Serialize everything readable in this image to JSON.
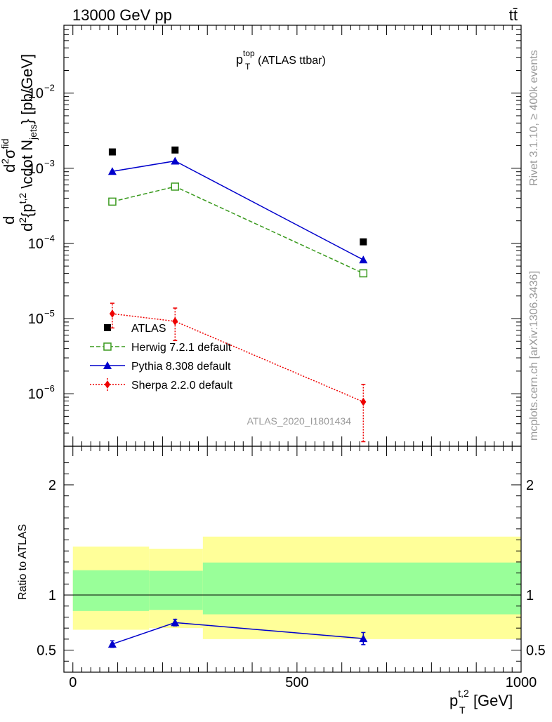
{
  "header": {
    "left": "13000 GeV pp",
    "right": "tt̄"
  },
  "side": {
    "rivet": "Rivet 3.1.10, ≥ 400k events",
    "mcplots": "mcplots.cern.ch [arXiv:1306.3436]"
  },
  "chart_data": [
    {
      "type": "line",
      "title_main": "p",
      "title_sup": "top",
      "title_sub": "T",
      "title_rest": " (ATLAS ttbar)",
      "ylabel_parts": {
        "d1": "d",
        "d2": "d",
        "sup2": "2",
        "sigma": "σ",
        "fid": "fid",
        "p": "{p",
        "T": "T",
        "t2": "t,2",
        "rest": " \\cdot N",
        "jets": "jets",
        "unit": "} [pb/GeV]"
      },
      "yscale": "log",
      "ylim": [
        2e-07,
        0.08
      ],
      "xlim": [
        -20,
        1000
      ],
      "ytick_labels": [
        "10",
        "10",
        "10",
        "10",
        "10"
      ],
      "ytick_exponents": [
        "−2",
        "−3",
        "−4",
        "−5",
        "−6"
      ],
      "ytick_values": [
        0.01,
        0.001,
        0.0001,
        1e-05,
        1e-06
      ],
      "watermark": "ATLAS_2020_I1801434",
      "legend_position": "left-bottom",
      "series": [
        {
          "name": "ATLAS",
          "color": "#000000",
          "marker": "square",
          "x": [
            88,
            228,
            648
          ],
          "y": [
            0.00165,
            0.00175,
            0.000105
          ]
        },
        {
          "name": "Herwig 7.2.1 default",
          "color": "#3a9a1e",
          "marker": "open-square",
          "line": "dashed",
          "x": [
            88,
            228,
            648
          ],
          "y": [
            0.00036,
            0.00057,
            4e-05
          ]
        },
        {
          "name": "Pythia 8.308 default",
          "color": "#0000cc",
          "marker": "triangle",
          "line": "solid",
          "x": [
            88,
            228,
            648
          ],
          "y": [
            0.00091,
            0.00125,
            6.05e-05
          ]
        },
        {
          "name": "Sherpa 2.2.0 default",
          "color": "#ee0000",
          "marker": "diamond",
          "line": "dotted",
          "x": [
            88,
            228,
            648
          ],
          "y": [
            1.16e-05,
            9.2e-06,
            7.8e-07
          ],
          "y_err_low": [
            4.1e-06,
            4.1e-06,
            5.5e-07
          ],
          "y_err_high": [
            4.4e-06,
            4.6e-06,
            5.5e-07
          ]
        }
      ]
    },
    {
      "type": "line",
      "ylabel": "Ratio to ATLAS",
      "xlabel_main": "p",
      "xlabel_sup": "t,2",
      "xlabel_sub": "T",
      "xlabel_unit": " [GeV]",
      "xlim": [
        -20,
        1000
      ],
      "ylim": [
        0.3,
        2.35
      ],
      "xtick_labels": [
        "0",
        "500",
        "1000"
      ],
      "xtick_values": [
        0,
        500,
        1000
      ],
      "ytick_labels": [
        "0.5",
        "1",
        "2"
      ],
      "ytick_values": [
        0.5,
        1,
        2
      ],
      "bands": [
        {
          "x0": 0,
          "x1": 170,
          "stat_low": 0.855,
          "stat_high": 1.225,
          "tot_low": 0.685,
          "tot_high": 1.44
        },
        {
          "x0": 170,
          "x1": 290,
          "stat_low": 0.865,
          "stat_high": 1.22,
          "tot_low": 0.7,
          "tot_high": 1.42
        },
        {
          "x0": 290,
          "x1": 1000,
          "stat_low": 0.825,
          "stat_high": 1.295,
          "tot_low": 0.6,
          "tot_high": 1.53
        }
      ],
      "band_colors": {
        "stat": "#99ff99",
        "tot": "#ffff99"
      },
      "series": [
        {
          "name": "Pythia 8.308 default",
          "color": "#0000cc",
          "marker": "triangle",
          "x": [
            88,
            228,
            648
          ],
          "y": [
            0.555,
            0.75,
            0.605
          ],
          "y_err": [
            0.03,
            0.03,
            0.055
          ]
        }
      ]
    }
  ]
}
